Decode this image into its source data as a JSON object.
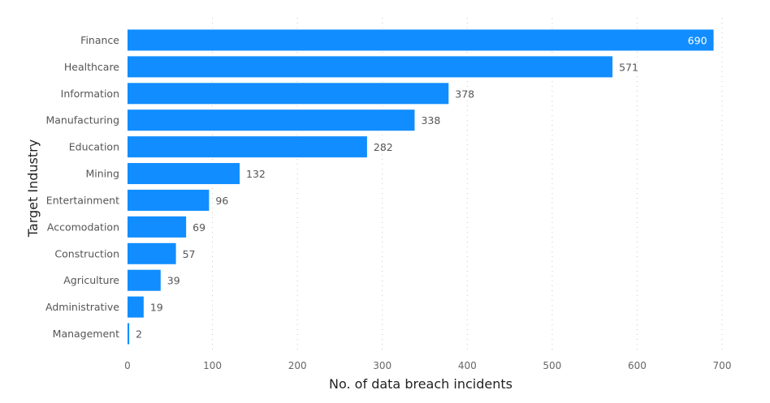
{
  "chart_data": {
    "type": "bar",
    "orientation": "horizontal",
    "categories": [
      "Finance",
      "Healthcare",
      "Information",
      "Manufacturing",
      "Education",
      "Mining",
      "Entertainment",
      "Accomodation",
      "Construction",
      "Agriculture",
      "Administrative",
      "Management"
    ],
    "values": [
      690,
      571,
      378,
      338,
      282,
      132,
      96,
      69,
      57,
      39,
      19,
      2
    ],
    "xlabel": "No. of data breach incidents",
    "ylabel": "Target Industry",
    "xlim": [
      0,
      700
    ],
    "xticks": [
      0,
      100,
      200,
      300,
      400,
      500,
      600,
      700
    ],
    "grid": true,
    "legend": "none",
    "bar_color": "#118DFF"
  }
}
